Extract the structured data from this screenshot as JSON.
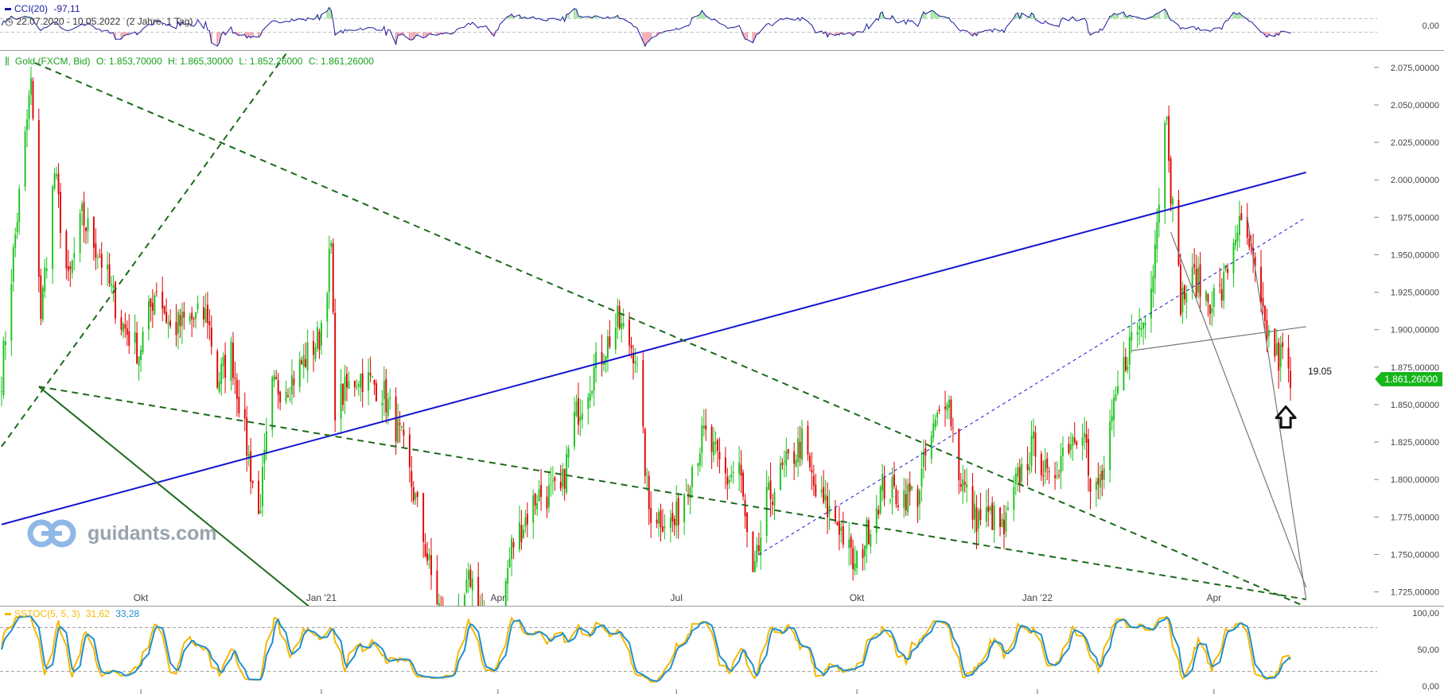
{
  "cci_pane": {
    "indicator_label": "CCI(20)",
    "indicator_value": "-97,11",
    "date_range": "22.07.2020 - 10.05.2022",
    "interval": "(2 Jahre, 1 Tag)",
    "zero_label": "0,00",
    "line_color": "#1a1aa0"
  },
  "main_pane": {
    "instrument": "Gold (FXCM, Bid)",
    "ohlc": {
      "open": "O: 1.853,70000",
      "high": "H: 1.865,30000",
      "low": "L: 1.852,26000",
      "close": "C: 1.861,26000"
    },
    "last_price": "1.861,26000",
    "annotation": "19.05",
    "watermark": "guidants.com",
    "up_color": "#17c21a",
    "down_color": "#e00000",
    "trendline_color": "#1414d2",
    "channel_color": "#1a6a1a"
  },
  "stoch_pane": {
    "indicator_label": "SSTOC(5, 5, 3)",
    "k_value": "31,62",
    "d_value": "33,28",
    "k_color": "#f5b800",
    "d_color": "#1e8fd0"
  },
  "chart_data": {
    "type": "candlestick",
    "instrument": "Gold (FXCM, Bid)",
    "period": "22.07.2020 - 10.05.2022",
    "y_axis": {
      "ticks": [
        "2.075,00000",
        "2.050,00000",
        "2.025,00000",
        "2.000,00000",
        "1.975,00000",
        "1.950,00000",
        "1.925,00000",
        "1.900,00000",
        "1.875,00000",
        "1.850,00000",
        "1.825,00000",
        "1.800,00000",
        "1.775,00000",
        "1.750,00000",
        "1.725,00000"
      ],
      "ylim": [
        1720,
        2085
      ]
    },
    "x_axis_labels": [
      "Okt",
      "Jan '21",
      "Apr",
      "Jul",
      "Okt",
      "Jan '22",
      "Apr"
    ],
    "close_path": [
      [
        "2020-07-22",
        1870
      ],
      [
        "2020-07-28",
        1950
      ],
      [
        "2020-08-06",
        2065
      ],
      [
        "2020-08-11",
        1910
      ],
      [
        "2020-08-18",
        2005
      ],
      [
        "2020-08-25",
        1930
      ],
      [
        "2020-09-01",
        1975
      ],
      [
        "2020-09-10",
        1950
      ],
      [
        "2020-09-21",
        1905
      ],
      [
        "2020-09-30",
        1885
      ],
      [
        "2020-10-09",
        1930
      ],
      [
        "2020-10-16",
        1900
      ],
      [
        "2020-10-23",
        1905
      ],
      [
        "2020-11-04",
        1910
      ],
      [
        "2020-11-09",
        1865
      ],
      [
        "2020-11-16",
        1885
      ],
      [
        "2020-11-30",
        1775
      ],
      [
        "2020-12-07",
        1860
      ],
      [
        "2020-12-16",
        1865
      ],
      [
        "2020-12-31",
        1895
      ],
      [
        "2021-01-06",
        1955
      ],
      [
        "2021-01-08",
        1850
      ],
      [
        "2021-01-20",
        1870
      ],
      [
        "2021-02-01",
        1860
      ],
      [
        "2021-02-11",
        1825
      ],
      [
        "2021-02-19",
        1780
      ],
      [
        "2021-02-26",
        1735
      ],
      [
        "2021-03-08",
        1685
      ],
      [
        "2021-03-18",
        1735
      ],
      [
        "2021-03-30",
        1685
      ],
      [
        "2021-04-08",
        1755
      ],
      [
        "2021-04-21",
        1790
      ],
      [
        "2021-05-03",
        1790
      ],
      [
        "2021-05-10",
        1840
      ],
      [
        "2021-05-19",
        1870
      ],
      [
        "2021-06-01",
        1905
      ],
      [
        "2021-06-10",
        1885
      ],
      [
        "2021-06-17",
        1780
      ],
      [
        "2021-06-30",
        1770
      ],
      [
        "2021-07-09",
        1810
      ],
      [
        "2021-07-15",
        1830
      ],
      [
        "2021-07-27",
        1800
      ],
      [
        "2021-08-02",
        1810
      ],
      [
        "2021-08-06",
        1760
      ],
      [
        "2021-08-09",
        1730
      ],
      [
        "2021-08-16",
        1785
      ],
      [
        "2021-08-24",
        1805
      ],
      [
        "2021-09-03",
        1825
      ],
      [
        "2021-09-10",
        1790
      ],
      [
        "2021-09-22",
        1770
      ],
      [
        "2021-09-30",
        1740
      ],
      [
        "2021-10-05",
        1760
      ],
      [
        "2021-10-14",
        1795
      ],
      [
        "2021-10-22",
        1790
      ],
      [
        "2021-11-01",
        1790
      ],
      [
        "2021-11-05",
        1815
      ],
      [
        "2021-11-16",
        1860
      ],
      [
        "2021-11-22",
        1805
      ],
      [
        "2021-11-30",
        1775
      ],
      [
        "2021-12-09",
        1775
      ],
      [
        "2021-12-15",
        1765
      ],
      [
        "2021-12-22",
        1800
      ],
      [
        "2021-12-31",
        1825
      ],
      [
        "2022-01-07",
        1795
      ],
      [
        "2022-01-14",
        1820
      ],
      [
        "2022-01-25",
        1840
      ],
      [
        "2022-01-28",
        1785
      ],
      [
        "2022-02-04",
        1805
      ],
      [
        "2022-02-11",
        1860
      ],
      [
        "2022-02-18",
        1895
      ],
      [
        "2022-02-24",
        1905
      ],
      [
        "2022-03-01",
        1945
      ],
      [
        "2022-03-08",
        2050
      ],
      [
        "2022-03-10",
        1995
      ],
      [
        "2022-03-15",
        1920
      ],
      [
        "2022-03-22",
        1935
      ],
      [
        "2022-03-29",
        1920
      ],
      [
        "2022-04-05",
        1925
      ],
      [
        "2022-04-13",
        1970
      ],
      [
        "2022-04-19",
        1955
      ],
      [
        "2022-04-22",
        1935
      ],
      [
        "2022-04-26",
        1905
      ],
      [
        "2022-04-29",
        1895
      ],
      [
        "2022-05-04",
        1880
      ],
      [
        "2022-05-06",
        1885
      ],
      [
        "2022-05-10",
        1861
      ]
    ],
    "cci_range": [
      -300,
      300
    ],
    "stoch_levels": [
      "100,00",
      "50,00",
      "0,00"
    ],
    "last_close": 1861.26
  }
}
